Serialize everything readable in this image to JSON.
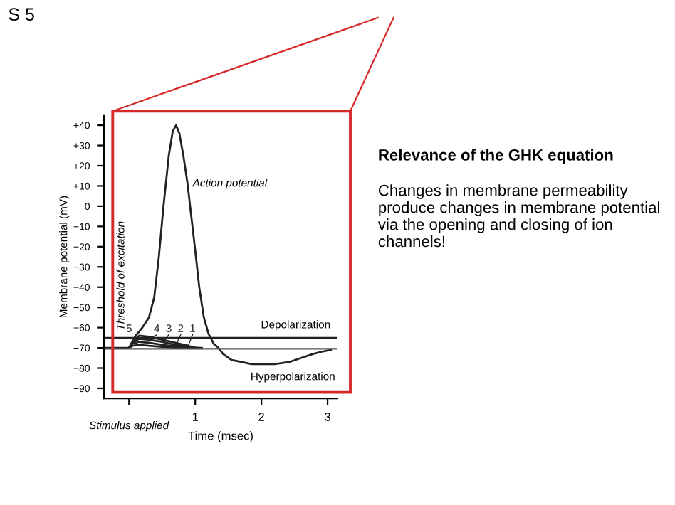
{
  "chart_data": {
    "type": "line",
    "title": "Relevance of the GHK equation",
    "subtitle": "Changes in membrane permeability produce changes in membrane potential via the opening and closing of ion channels!",
    "xlabel": "Time (msec)",
    "ylabel": "Membrane potential (mV)",
    "series": [
      {
        "name": "5",
        "color": "#222222",
        "x": [
          -0.35,
          0,
          0.05,
          0.1,
          0.2,
          0.3,
          0.38,
          0.45,
          0.52,
          0.6,
          0.66,
          0.71,
          0.76,
          0.82,
          0.88,
          0.94,
          1.0,
          1.06,
          1.13,
          1.2,
          1.28,
          1.35,
          1.42,
          1.55,
          1.7,
          1.85,
          2.0,
          2.2,
          2.42,
          2.6,
          2.78,
          2.9,
          3.05
        ],
        "values": [
          -70,
          -70,
          -67,
          -64,
          -60,
          -55,
          -45,
          -25,
          0,
          25,
          37,
          40,
          36,
          25,
          12,
          -5,
          -22,
          -40,
          -55,
          -63,
          -68,
          -70,
          -73,
          -76,
          -77,
          -78,
          -78,
          -78,
          -77,
          -75,
          -73,
          -72,
          -71
        ]
      },
      {
        "name": "4",
        "color": "#222222",
        "x": [
          0,
          0.05,
          0.15,
          0.3,
          0.5,
          0.7,
          0.9,
          1.0
        ],
        "values": [
          -70,
          -67,
          -64,
          -64.5,
          -66,
          -67.5,
          -69,
          -70
        ]
      },
      {
        "name": "3",
        "color": "#222222",
        "x": [
          0,
          0.05,
          0.15,
          0.3,
          0.5,
          0.7,
          0.9,
          0.98
        ],
        "values": [
          -70,
          -67.5,
          -65.5,
          -66,
          -67,
          -68.5,
          -69.5,
          -70
        ]
      },
      {
        "name": "2",
        "color": "#222222",
        "x": [
          0,
          0.05,
          0.15,
          0.3,
          0.5,
          0.7,
          0.9,
          1.05
        ],
        "values": [
          -70,
          -68,
          -67,
          -67.5,
          -68.5,
          -69.2,
          -69.8,
          -70
        ]
      },
      {
        "name": "1",
        "color": "#222222",
        "x": [
          0,
          0.05,
          0.15,
          0.3,
          0.5,
          0.7,
          0.9,
          1.1
        ],
        "values": [
          -70,
          -69,
          -68.5,
          -69,
          -69.5,
          -69.8,
          -70,
          -70
        ]
      }
    ],
    "xlim": [
      -0.38,
      3.15
    ],
    "ylim": [
      -95,
      45
    ],
    "xticks": [
      {
        "value": 0,
        "label": null
      },
      1,
      2,
      3
    ],
    "yticks": [
      {
        "value": 40,
        "label": "+40"
      },
      {
        "value": 30,
        "label": "+30"
      },
      {
        "value": 20,
        "label": "+20"
      },
      {
        "value": 10,
        "label": "+10"
      },
      0,
      {
        "value": -10,
        "label": "−10"
      },
      {
        "value": -20,
        "label": "−20"
      },
      {
        "value": -30,
        "label": "−30"
      },
      {
        "value": -40,
        "label": "−40"
      },
      {
        "value": -50,
        "label": "−50"
      },
      {
        "value": -60,
        "label": "−60"
      },
      {
        "value": -70,
        "label": "−70"
      },
      {
        "value": -80,
        "label": "−80"
      },
      {
        "value": -90,
        "label": "−90"
      }
    ],
    "ref_lines": [
      {
        "axis": "y",
        "value": -65,
        "color": "#222222"
      },
      {
        "axis": "y",
        "value": -70.5,
        "color": "#555555"
      }
    ],
    "annotations": [
      "Action potential",
      "Depolarization",
      "Hyperpolarization",
      "Threshold of excitation",
      "Stimulus applied",
      "S 5"
    ],
    "grid": false,
    "legend": false,
    "marker": "none",
    "line_style": "solid"
  }
}
